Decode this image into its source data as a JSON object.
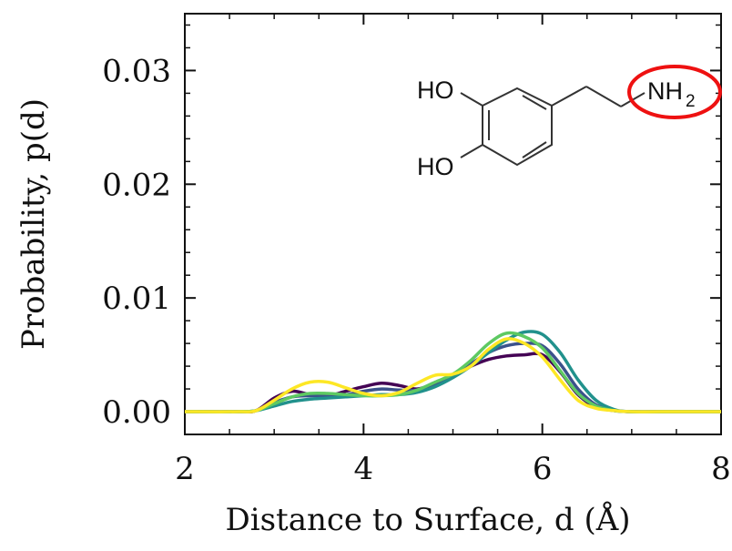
{
  "chart_data": {
    "type": "line",
    "title": "",
    "xlabel": "Distance to Surface, d (Å)",
    "ylabel": "Probability, p(d)",
    "xlim": [
      2,
      8
    ],
    "ylim": [
      -0.002,
      0.035
    ],
    "x_ticks": [
      2,
      4,
      6,
      8
    ],
    "x_tick_labels": [
      "2",
      "4",
      "6",
      "8"
    ],
    "y_ticks": [
      0.0,
      0.01,
      0.02,
      0.03
    ],
    "y_tick_labels": [
      "0.00",
      "0.01",
      "0.02",
      "0.03"
    ],
    "grid": false,
    "legend": "none",
    "x": [
      2.0,
      2.6,
      2.8,
      3.0,
      3.2,
      3.4,
      3.6,
      3.8,
      4.0,
      4.2,
      4.4,
      4.6,
      4.8,
      5.0,
      5.2,
      5.4,
      5.6,
      5.8,
      6.0,
      6.2,
      6.4,
      6.6,
      6.8,
      7.0,
      7.5,
      8.0
    ],
    "series": [
      {
        "color": "#440154",
        "values": [
          0,
          0,
          0.0001,
          0.0012,
          0.0018,
          0.0015,
          0.0014,
          0.0018,
          0.0022,
          0.0025,
          0.0023,
          0.002,
          0.0025,
          0.0032,
          0.004,
          0.0046,
          0.0049,
          0.005,
          0.005,
          0.0035,
          0.0015,
          0.0004,
          0.0001,
          0,
          0,
          0
        ]
      },
      {
        "color": "#3b528b",
        "values": [
          0,
          0,
          0.0001,
          0.0008,
          0.0013,
          0.0014,
          0.0014,
          0.0015,
          0.0018,
          0.002,
          0.0019,
          0.0019,
          0.0024,
          0.0032,
          0.0042,
          0.0052,
          0.0058,
          0.006,
          0.0058,
          0.0042,
          0.002,
          0.0006,
          0.0001,
          0,
          0,
          0
        ]
      },
      {
        "color": "#21918c",
        "values": [
          0,
          0,
          0.0001,
          0.0005,
          0.0009,
          0.0011,
          0.0012,
          0.0013,
          0.0014,
          0.0015,
          0.0015,
          0.0017,
          0.0022,
          0.003,
          0.004,
          0.0052,
          0.0063,
          0.007,
          0.0068,
          0.0052,
          0.0028,
          0.001,
          0.0002,
          0,
          0,
          0
        ]
      },
      {
        "color": "#5ec962",
        "values": [
          0,
          0,
          0.0001,
          0.0007,
          0.0013,
          0.0016,
          0.0016,
          0.0015,
          0.0014,
          0.0014,
          0.0015,
          0.0019,
          0.0026,
          0.0033,
          0.0045,
          0.006,
          0.0069,
          0.0066,
          0.0056,
          0.0036,
          0.0016,
          0.0005,
          0.0001,
          0,
          0,
          0
        ]
      },
      {
        "color": "#fde725",
        "values": [
          0,
          0,
          0.0001,
          0.001,
          0.002,
          0.0026,
          0.0026,
          0.0021,
          0.0016,
          0.0014,
          0.0017,
          0.0025,
          0.0032,
          0.0033,
          0.004,
          0.0055,
          0.0064,
          0.006,
          0.0048,
          0.0028,
          0.001,
          0.0003,
          0.0001,
          0,
          0,
          0
        ]
      }
    ]
  },
  "inset": {
    "hydroxyl_top": "HO",
    "hydroxyl_bottom": "HO",
    "amine": "NH",
    "amine_subscript": "2",
    "highlight_color": "#ee1111"
  }
}
